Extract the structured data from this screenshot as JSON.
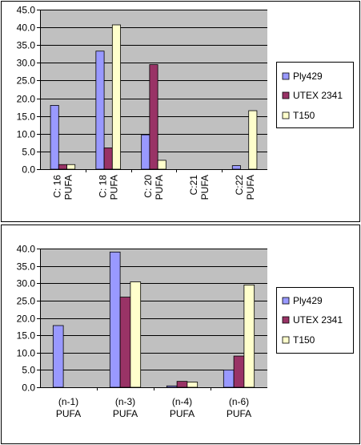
{
  "colors": {
    "plot_background": "#c0c0c0",
    "gridline": "#000000",
    "frame": "#000000"
  },
  "chart_data": [
    {
      "type": "bar",
      "categories": [
        [
          "C: 16",
          "PUFA"
        ],
        [
          "C: 18",
          "PUFA"
        ],
        [
          "C: 20",
          "PUFA"
        ],
        [
          "C:21",
          "PUFA"
        ],
        [
          "C:22",
          "PUFA"
        ]
      ],
      "category_label_orientation": "rotated-vertical",
      "series": [
        {
          "name": "Ply429",
          "color": "#9999ff",
          "values": [
            18.0,
            33.3,
            9.7,
            0.0,
            1.0
          ]
        },
        {
          "name": "UTEX 2341",
          "color": "#993366",
          "values": [
            1.3,
            6.0,
            29.5,
            0.0,
            0.0
          ]
        },
        {
          "name": "T150",
          "color": "#ffffcc",
          "values": [
            1.3,
            40.7,
            2.5,
            0.0,
            16.5
          ]
        }
      ],
      "yticks": [
        "0.0",
        "5.0",
        "10.0",
        "15.0",
        "20.0",
        "25.0",
        "30.0",
        "35.0",
        "40.0",
        "45.0"
      ],
      "ylim": [
        0,
        45
      ],
      "grid": true,
      "legend": "right"
    },
    {
      "type": "bar",
      "categories": [
        [
          "(n-1)",
          "PUFA"
        ],
        [
          "(n-3)",
          "PUFA"
        ],
        [
          "(n-4)",
          "PUFA"
        ],
        [
          "(n-6)",
          "PUFA"
        ]
      ],
      "category_label_orientation": "horizontal",
      "series": [
        {
          "name": "Ply429",
          "color": "#9999ff",
          "values": [
            17.8,
            39.0,
            0.4,
            5.0
          ]
        },
        {
          "name": "UTEX 2341",
          "color": "#993366",
          "values": [
            0.0,
            26.0,
            1.7,
            9.0
          ]
        },
        {
          "name": "T150",
          "color": "#ffffcc",
          "values": [
            0.0,
            30.4,
            1.5,
            29.5
          ]
        }
      ],
      "yticks": [
        "0.0",
        "5.0",
        "10.0",
        "15.0",
        "20.0",
        "25.0",
        "30.0",
        "35.0",
        "40.0"
      ],
      "ylim": [
        0,
        40
      ],
      "grid": true,
      "legend": "right"
    }
  ]
}
